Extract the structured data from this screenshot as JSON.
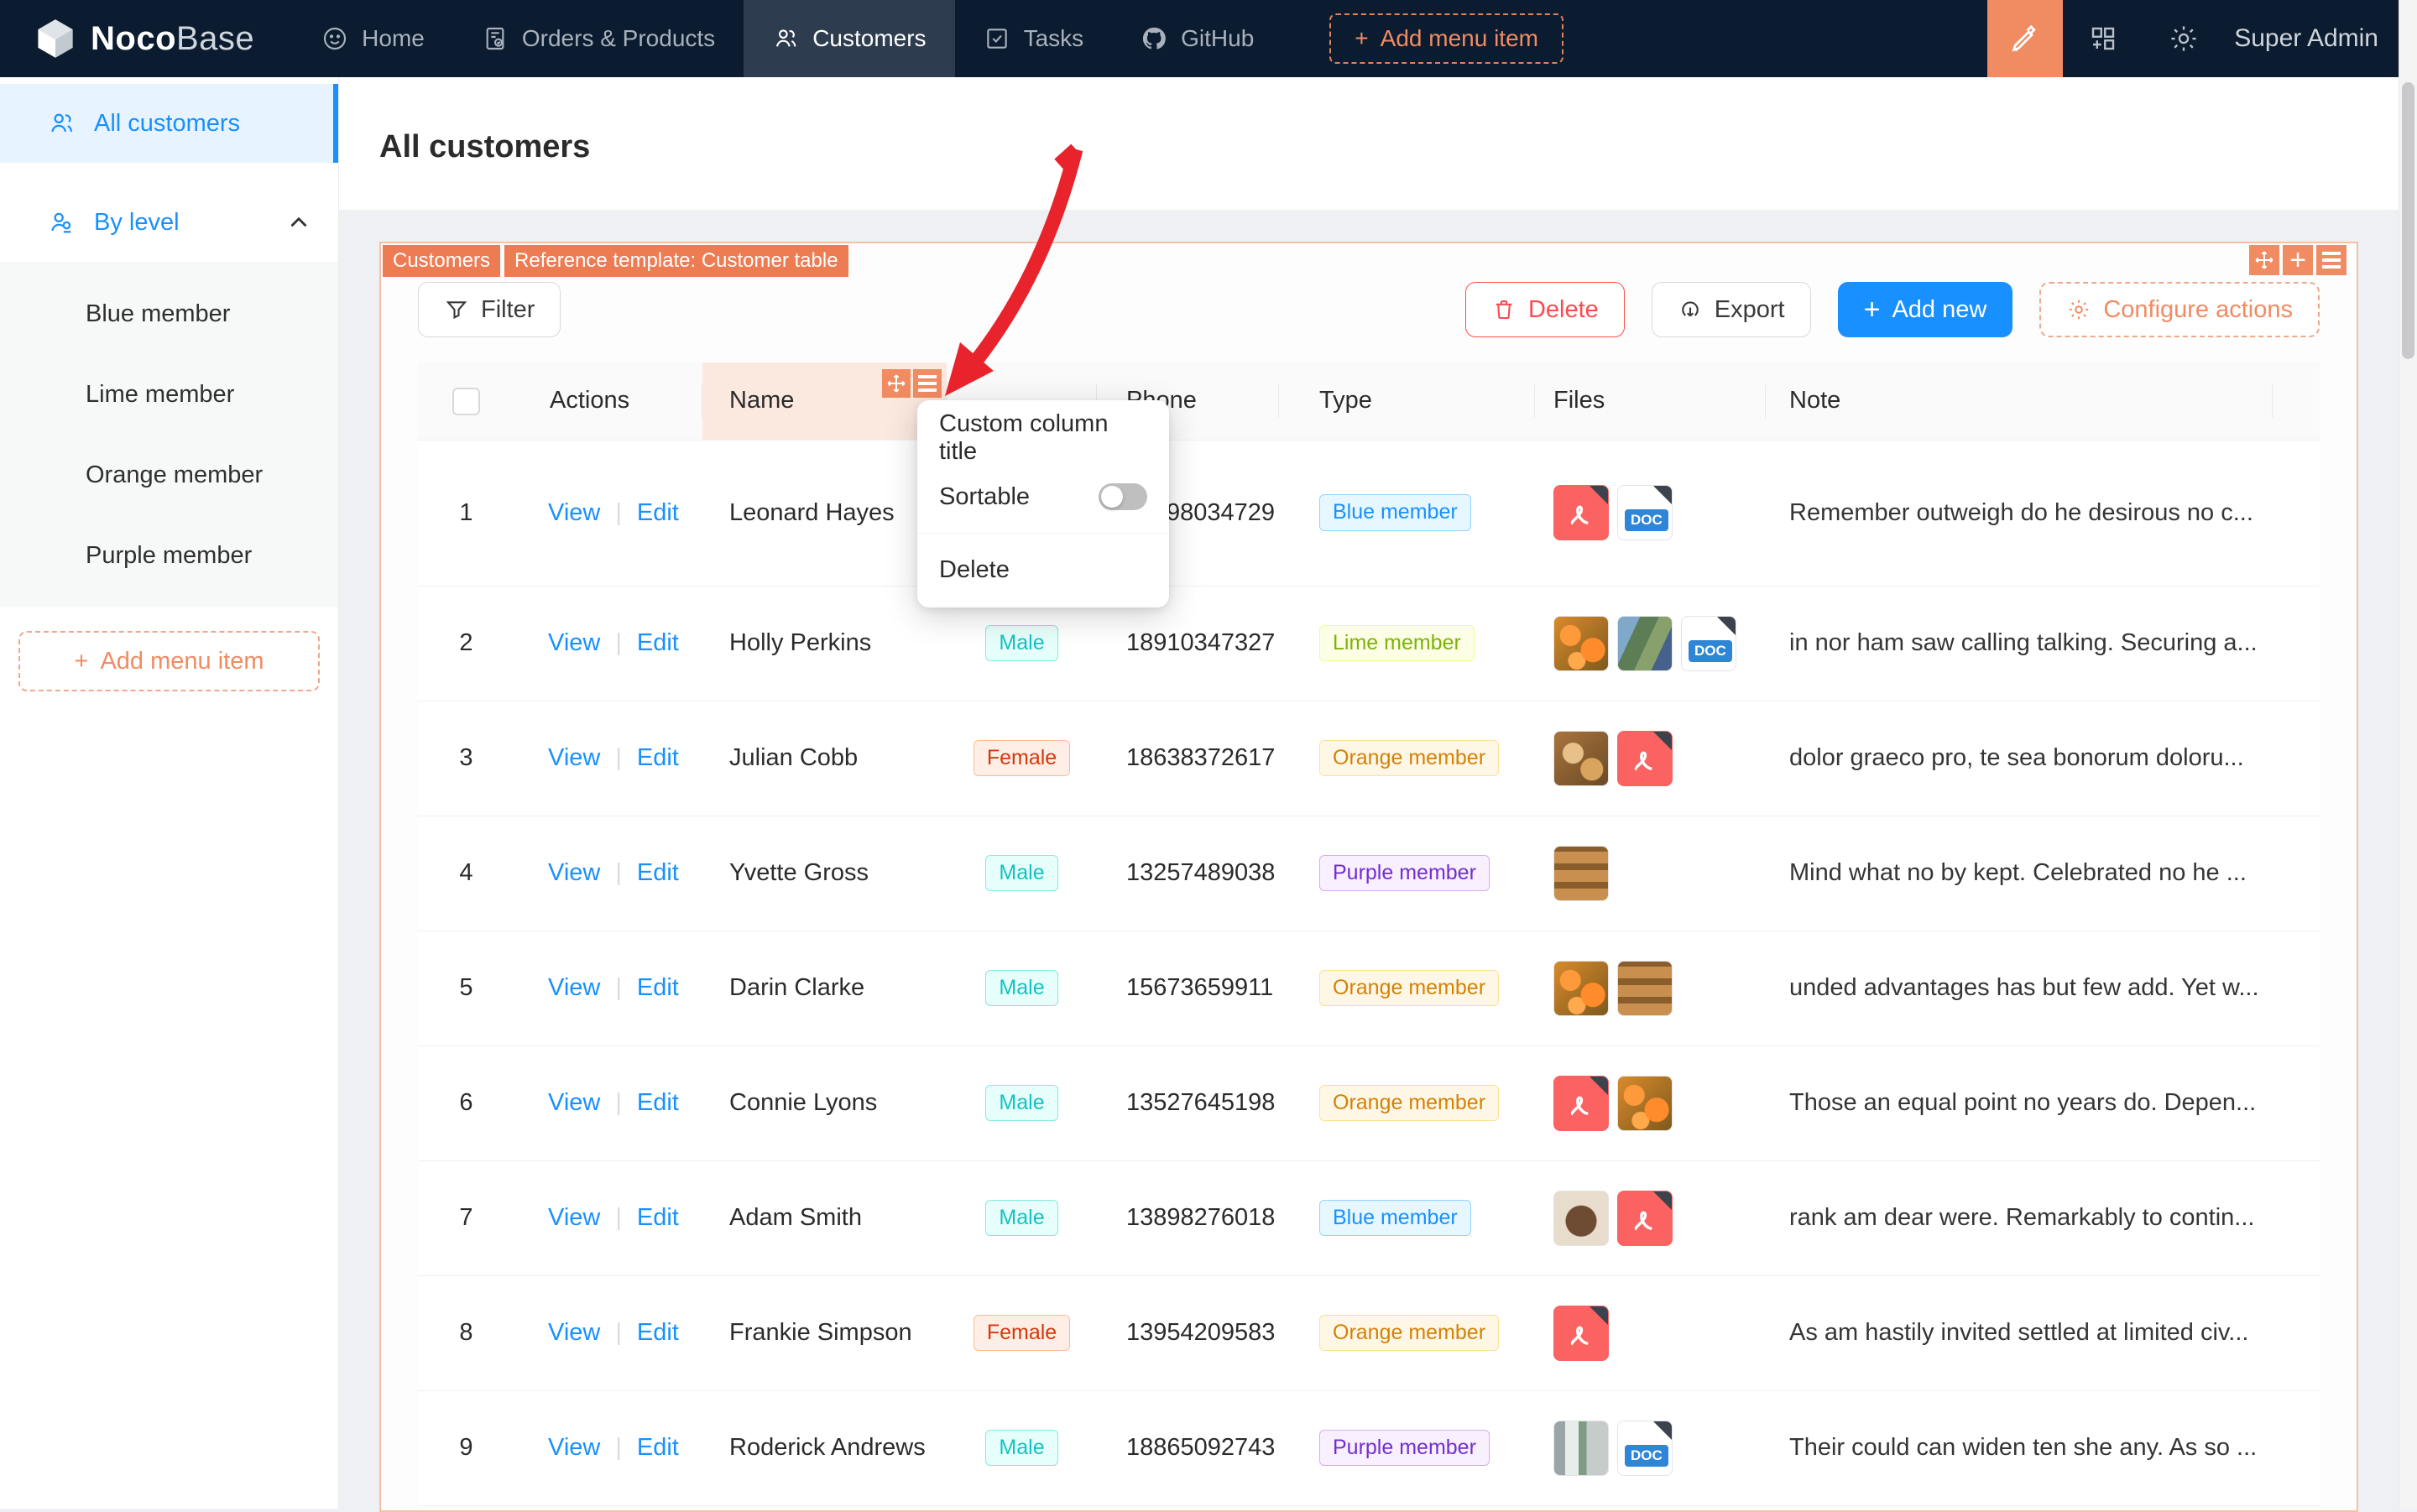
{
  "navbar": {
    "logo_primary": "Noco",
    "logo_secondary": "Base",
    "items": [
      {
        "label": "Home",
        "icon": "smiley-icon"
      },
      {
        "label": "Orders & Products",
        "icon": "document-check-icon"
      },
      {
        "label": "Customers",
        "icon": "users-icon",
        "active": true
      },
      {
        "label": "Tasks",
        "icon": "checkbox-icon"
      },
      {
        "label": "GitHub",
        "icon": "github-icon"
      }
    ],
    "add_menu_label": "Add menu item",
    "user": "Super Admin"
  },
  "sidebar": {
    "items": [
      {
        "label": "All customers",
        "active": true
      },
      {
        "label": "By level",
        "collapsible": true
      }
    ],
    "sub_items": [
      {
        "label": "Blue member"
      },
      {
        "label": "Lime member"
      },
      {
        "label": "Orange member"
      },
      {
        "label": "Purple member"
      }
    ],
    "add_menu_label": "Add menu item"
  },
  "page": {
    "title": "All customers"
  },
  "block": {
    "tags": [
      "Customers",
      "Reference template: Customer table"
    ],
    "toolbar": {
      "filter_label": "Filter",
      "delete_label": "Delete",
      "export_label": "Export",
      "add_new_label": "Add new",
      "configure_actions_label": "Configure actions"
    }
  },
  "popup": {
    "items": {
      "custom_title": "Custom column title",
      "sortable": "Sortable",
      "delete": "Delete"
    },
    "sortable_on": false
  },
  "table": {
    "headers": {
      "actions": "Actions",
      "name": "Name",
      "gender": "",
      "phone": "Phone",
      "type": "Type",
      "files": "Files",
      "note": "Note"
    },
    "action_labels": {
      "view": "View",
      "edit": "Edit"
    },
    "rows": [
      {
        "index": "1",
        "name": "Leonard Hayes",
        "gender": "",
        "gender_color": "",
        "phone": "98034729",
        "phone_occluded": true,
        "type": "Blue member",
        "type_color": "blue",
        "files": [
          {
            "t": "pdf"
          },
          {
            "t": "doc"
          }
        ],
        "note": "Remember outweigh do he desirous no c..."
      },
      {
        "index": "2",
        "name": "Holly Perkins",
        "gender": "Male",
        "gender_color": "cyan",
        "phone": "18910347327",
        "type": "Lime member",
        "type_color": "lime",
        "files": [
          {
            "t": "img",
            "v": "oranges"
          },
          {
            "t": "img",
            "v": "plants"
          },
          {
            "t": "doc"
          }
        ],
        "note": "in nor ham saw calling talking. Securing a..."
      },
      {
        "index": "3",
        "name": "Julian Cobb",
        "gender": "Female",
        "gender_color": "volcano",
        "phone": "18638372617",
        "type": "Orange member",
        "type_color": "orange",
        "files": [
          {
            "t": "img",
            "v": "bread"
          },
          {
            "t": "pdf"
          }
        ],
        "note": "dolor graeco pro, te sea bonorum doloru..."
      },
      {
        "index": "4",
        "name": "Yvette Gross",
        "gender": "Male",
        "gender_color": "cyan",
        "phone": "13257489038",
        "type": "Purple member",
        "type_color": "purple",
        "files": [
          {
            "t": "img",
            "v": "pastry"
          }
        ],
        "note": "Mind what no by kept. Celebrated no he ..."
      },
      {
        "index": "5",
        "name": "Darin Clarke",
        "gender": "Male",
        "gender_color": "cyan",
        "phone": "15673659911",
        "type": "Orange member",
        "type_color": "orange",
        "files": [
          {
            "t": "img",
            "v": "oranges"
          },
          {
            "t": "img",
            "v": "pastry"
          }
        ],
        "note": "unded advantages has but few add. Yet w..."
      },
      {
        "index": "6",
        "name": "Connie Lyons",
        "gender": "Male",
        "gender_color": "cyan",
        "phone": "13527645198",
        "type": "Orange member",
        "type_color": "orange",
        "files": [
          {
            "t": "pdf"
          },
          {
            "t": "img",
            "v": "oranges"
          }
        ],
        "note": "Those an equal point no years do. Depen..."
      },
      {
        "index": "7",
        "name": "Adam Smith",
        "gender": "Male",
        "gender_color": "cyan",
        "phone": "13898276018",
        "type": "Blue member",
        "type_color": "blue",
        "files": [
          {
            "t": "img",
            "v": "coffee"
          },
          {
            "t": "pdf"
          }
        ],
        "note": "rank am dear were. Remarkably to contin..."
      },
      {
        "index": "8",
        "name": "Frankie Simpson",
        "gender": "Female",
        "gender_color": "volcano",
        "phone": "13954209583",
        "type": "Orange member",
        "type_color": "orange",
        "files": [
          {
            "t": "pdf"
          }
        ],
        "note": "As am hastily invited settled at limited civ..."
      },
      {
        "index": "9",
        "name": "Roderick Andrews",
        "gender": "Male",
        "gender_color": "cyan",
        "phone": "18865092743",
        "type": "Purple member",
        "type_color": "purple",
        "files": [
          {
            "t": "img",
            "v": "shop"
          },
          {
            "t": "doc"
          }
        ],
        "note": "Their could can widen ten she any. As so ..."
      }
    ]
  },
  "colors": {
    "accent_orange": "#f18b62",
    "primary_blue": "#1890ff",
    "danger_red": "#ff4d4f",
    "navbar_bg": "#0c1c30",
    "arrow_red": "#e8232b"
  }
}
